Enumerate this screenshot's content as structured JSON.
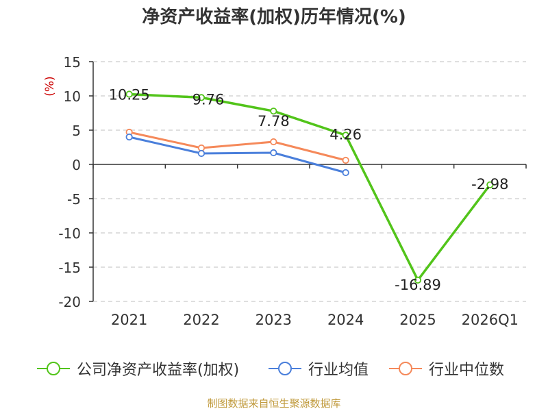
{
  "page": {
    "title": "净资产收益率(加权)历年情况(%)",
    "source_note": "制图数据来自恒生聚源数据库"
  },
  "colors": {
    "company": "#52c41a",
    "industry_avg": "#4a7fdb",
    "industry_median": "#f5895a",
    "axis": "#333333",
    "grid": "#cccccc",
    "unit_label": "#cc0000"
  },
  "chart_data": {
    "type": "line",
    "title": "净资产收益率(加权)历年情况(%)",
    "ylabel": "(%)",
    "xlabel": "",
    "categories": [
      "2021",
      "2022",
      "2023",
      "2024",
      "2025",
      "2026Q1"
    ],
    "ylim": [
      -20,
      15
    ],
    "yticks": [
      15,
      10,
      5,
      0,
      -5,
      -10,
      -15,
      -20
    ],
    "grid": true,
    "legend_position": "bottom",
    "series": [
      {
        "name": "公司净资产收益率(加权)",
        "color_key": "company",
        "values": [
          10.25,
          9.76,
          7.78,
          4.26,
          -16.89,
          -2.98
        ],
        "data_labels": true
      },
      {
        "name": "行业均值",
        "color_key": "industry_avg",
        "values": [
          4.0,
          1.6,
          1.7,
          -1.2,
          null,
          null
        ],
        "data_labels": false
      },
      {
        "name": "行业中位数",
        "color_key": "industry_median",
        "values": [
          4.7,
          2.4,
          3.3,
          0.6,
          null,
          null
        ],
        "data_labels": false
      }
    ],
    "data_labels": [
      "10.25",
      "9.76",
      "7.78",
      "4.26",
      "-16.89",
      "-2.98"
    ]
  }
}
